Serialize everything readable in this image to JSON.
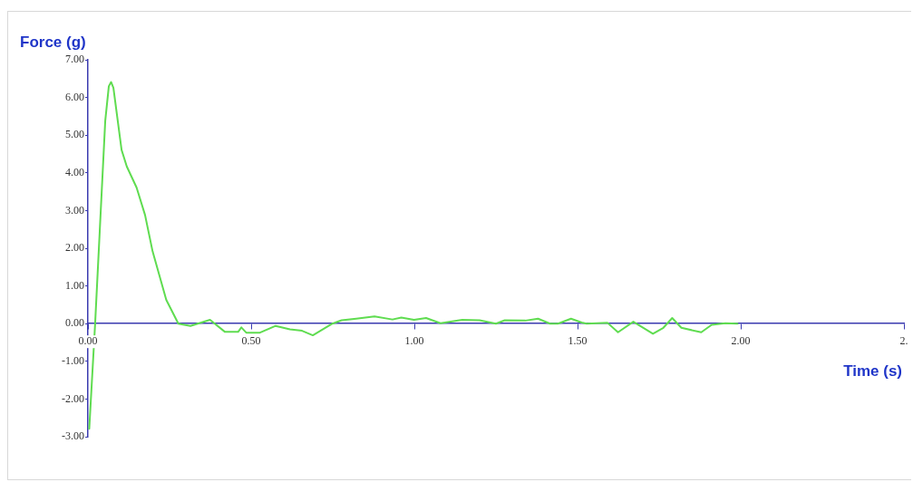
{
  "chart_data": {
    "type": "line",
    "xlabel": "Time (s)",
    "ylabel": "Force (g)",
    "xlim": [
      0,
      2.5
    ],
    "ylim": [
      -3,
      7
    ],
    "xticks": [
      {
        "value": 0,
        "label": "0.00"
      },
      {
        "value": 0.5,
        "label": "0.50"
      },
      {
        "value": 1,
        "label": "1.00"
      },
      {
        "value": 1.5,
        "label": "1.50"
      },
      {
        "value": 2,
        "label": "2.00"
      },
      {
        "value": 2.5,
        "label": "2."
      }
    ],
    "yticks": [
      {
        "value": -3,
        "label": "-3.00"
      },
      {
        "value": -2,
        "label": "-2.00"
      },
      {
        "value": -1,
        "label": "-1.00"
      },
      {
        "value": 0,
        "label": "0.00"
      },
      {
        "value": 1,
        "label": "1.00"
      },
      {
        "value": 2,
        "label": "2.00"
      },
      {
        "value": 3,
        "label": "3.00"
      },
      {
        "value": 4,
        "label": "4.00"
      },
      {
        "value": 5,
        "label": "5.00"
      },
      {
        "value": 6,
        "label": "6.00"
      },
      {
        "value": 7,
        "label": "7.00"
      }
    ],
    "grid": false,
    "legend": false,
    "marker": "none",
    "line_style": "solid",
    "series": [
      {
        "color": "#5fdc50",
        "x": [
          0.004,
          0.022,
          0.053,
          0.064,
          0.071,
          0.078,
          0.103,
          0.119,
          0.149,
          0.175,
          0.198,
          0.24,
          0.277,
          0.314,
          0.374,
          0.42,
          0.46,
          0.47,
          0.485,
          0.527,
          0.564,
          0.575,
          0.619,
          0.656,
          0.689,
          0.749,
          0.777,
          0.822,
          0.878,
          0.933,
          0.96,
          0.999,
          1.036,
          1.08,
          1.147,
          1.2,
          1.25,
          1.277,
          1.34,
          1.379,
          1.416,
          1.44,
          1.48,
          1.513,
          1.528,
          1.592,
          1.624,
          1.671,
          1.731,
          1.763,
          1.79,
          1.818,
          1.879,
          1.911,
          1.953,
          1.99
        ],
        "values": [
          -2.79,
          0,
          5.38,
          6.3,
          6.41,
          6.26,
          4.61,
          4.17,
          3.61,
          2.88,
          1.92,
          0.63,
          0,
          -0.06,
          0.1,
          -0.22,
          -0.22,
          -0.1,
          -0.24,
          -0.24,
          -0.1,
          -0.06,
          -0.15,
          -0.19,
          -0.31,
          0,
          0.09,
          0.13,
          0.19,
          0.11,
          0.16,
          0.1,
          0.15,
          0.01,
          0.1,
          0.09,
          0,
          0.09,
          0.08,
          0.13,
          0,
          0,
          0.13,
          0.03,
          0,
          0.02,
          -0.23,
          0.05,
          -0.27,
          -0.11,
          0.15,
          -0.11,
          -0.23,
          -0.03,
          0.01,
          0
        ]
      }
    ]
  }
}
